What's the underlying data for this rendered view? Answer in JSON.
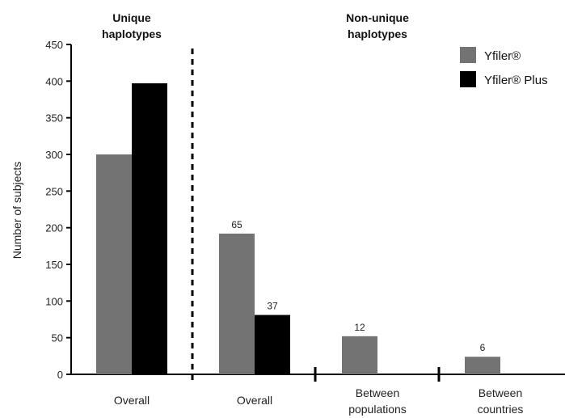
{
  "chart_data": {
    "type": "bar",
    "ylabel": "Number of subjects",
    "ylim": [
      0,
      450
    ],
    "yticks": [
      0,
      50,
      100,
      150,
      200,
      250,
      300,
      350,
      400,
      450
    ],
    "group_titles": [
      {
        "lines": [
          "Unique",
          "haplotypes"
        ]
      },
      {
        "lines": [
          "Non-unique",
          "haplotypes"
        ]
      }
    ],
    "categories": [
      {
        "lines": [
          "Overall"
        ]
      },
      {
        "lines": [
          "Overall"
        ]
      },
      {
        "lines": [
          "Between",
          "populations"
        ]
      },
      {
        "lines": [
          "Between",
          "countries"
        ]
      }
    ],
    "series": [
      {
        "name": "Yfiler®",
        "color": "#737373",
        "values": [
          300,
          192,
          52,
          24
        ],
        "labels": [
          "",
          "65",
          "12",
          "6"
        ]
      },
      {
        "name": "Yfiler® Plus",
        "color": "#000000",
        "values": [
          397,
          81,
          null,
          null
        ],
        "labels": [
          "",
          "37",
          "",
          ""
        ]
      }
    ],
    "legend_position": "top-right",
    "grid": false,
    "separator": "dashed vertical line between unique and non-unique groups"
  }
}
